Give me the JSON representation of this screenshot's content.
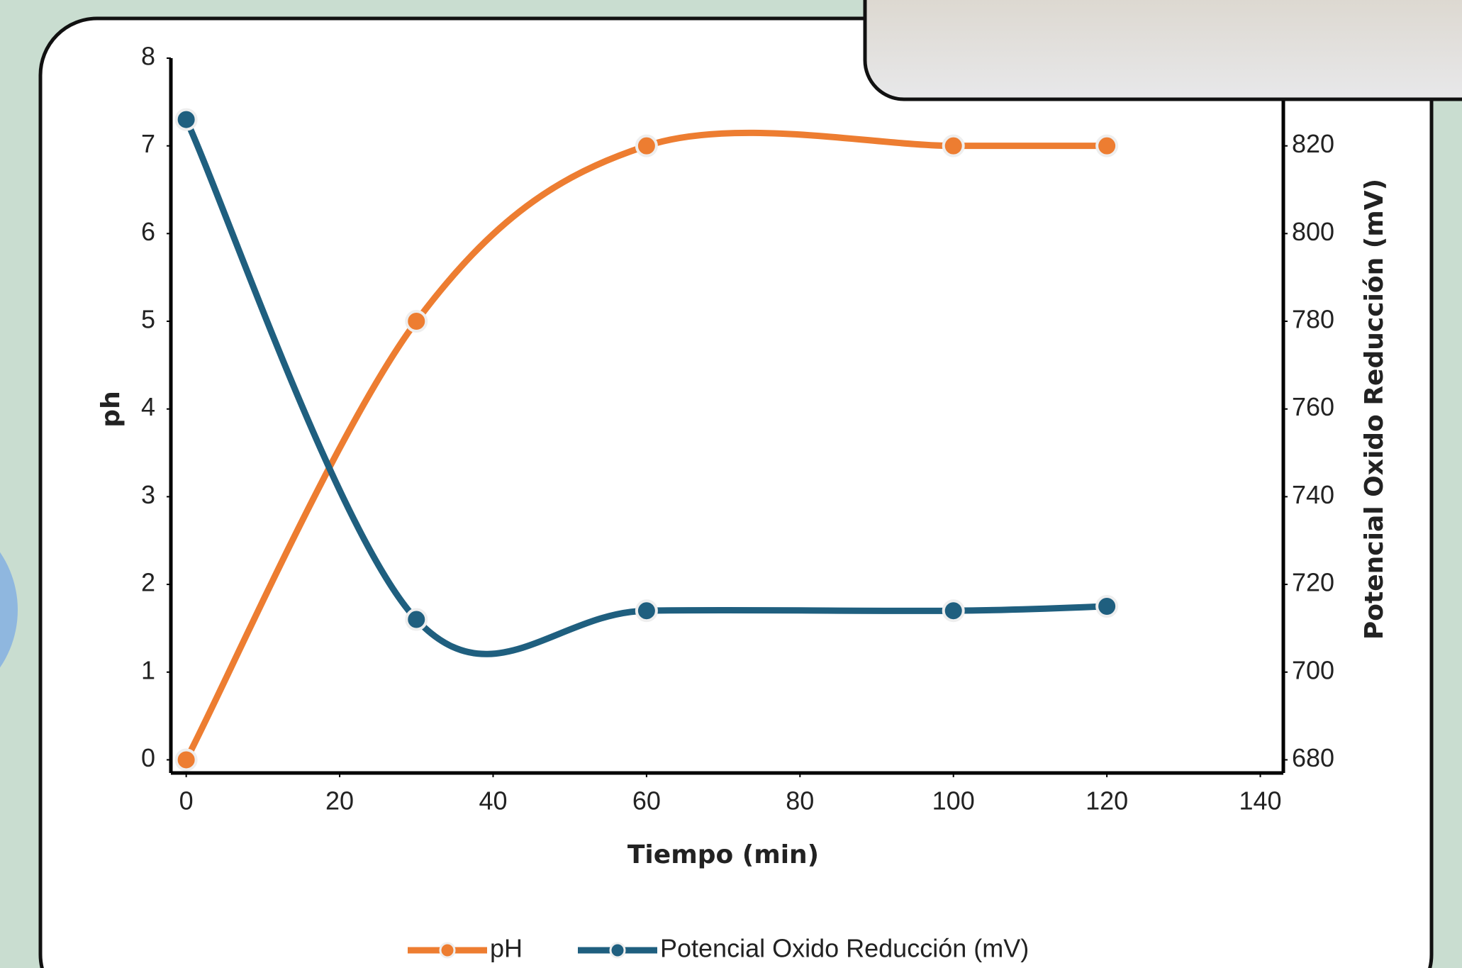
{
  "chart_data": {
    "type": "line",
    "x_label": "Tiempo (min)",
    "y_label": "ph",
    "y2_label": "Potencial Oxido Reducción (mV)",
    "x": [
      0,
      30,
      60,
      100,
      120
    ],
    "series": [
      {
        "name": "pH",
        "color": "#ed7d31",
        "values": [
          0,
          5,
          7,
          7,
          7
        ]
      },
      {
        "name": "Potencial Oxido Reducción (mV)",
        "color": "#1f5f7f",
        "axis": "y2",
        "values": [
          826,
          712,
          714,
          714,
          715
        ]
      }
    ],
    "xlim": [
      -2,
      143
    ],
    "xticks": [
      0,
      20,
      40,
      60,
      80,
      100,
      120,
      140
    ],
    "ylim": [
      -0.15,
      8
    ],
    "yticks": [
      0,
      1,
      2,
      3,
      4,
      5,
      6,
      7,
      8
    ],
    "y2lim": [
      677,
      840
    ],
    "y2ticks": [
      680,
      700,
      720,
      740,
      760,
      780,
      800,
      820
    ],
    "smooth": true,
    "legend": "bottom"
  }
}
